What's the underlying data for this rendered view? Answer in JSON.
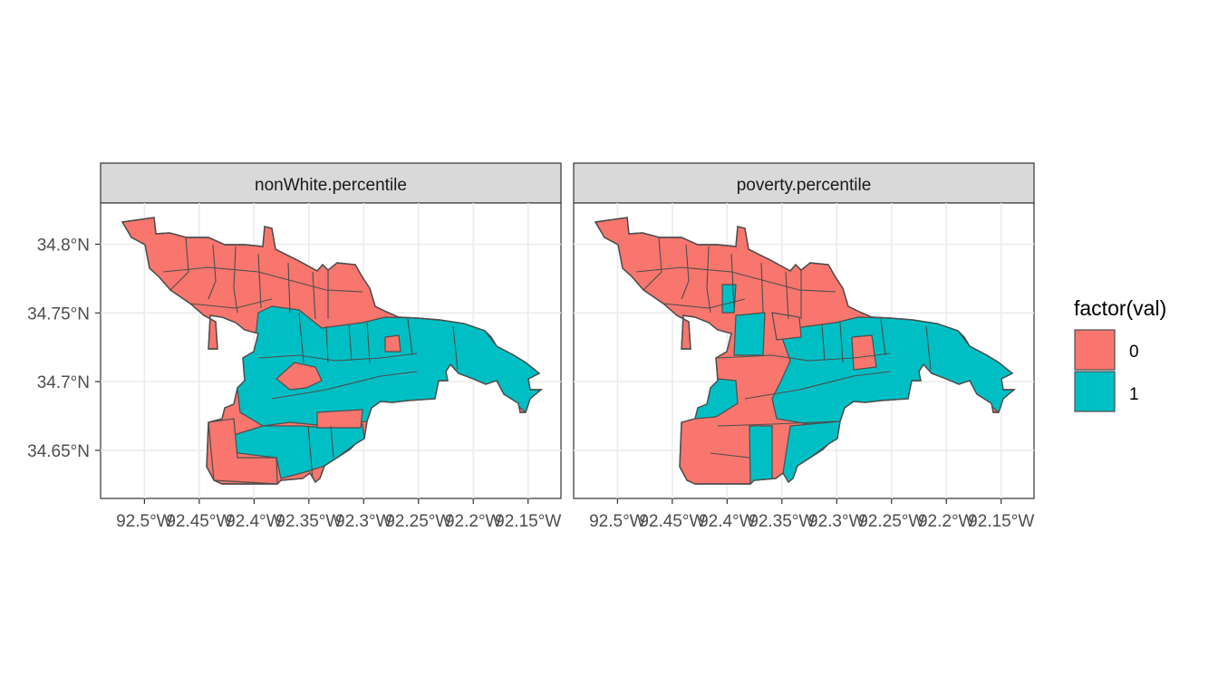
{
  "chart_data": {
    "type": "choropleth-map",
    "facets": [
      {
        "name": "nonWhite.percentile"
      },
      {
        "name": "poverty.percentile"
      }
    ],
    "x_ticks": [
      "92.5°W",
      "92.45°W",
      "92.4°W",
      "92.35°W",
      "92.3°W",
      "92.25°W",
      "92.2°W",
      "92.15°W"
    ],
    "x_values": [
      -92.5,
      -92.45,
      -92.4,
      -92.35,
      -92.3,
      -92.25,
      -92.2,
      -92.15
    ],
    "y_ticks": [
      "34.8°N",
      "34.75°N",
      "34.7°N",
      "34.65°N"
    ],
    "y_values": [
      34.8,
      34.75,
      34.7,
      34.65
    ],
    "xlim": [
      -92.54,
      -92.12
    ],
    "ylim": [
      34.615,
      34.83
    ],
    "legend": {
      "title": "factor(val)",
      "placement": "right",
      "entries": [
        {
          "label": "0",
          "color": "#F8766D"
        },
        {
          "label": "1",
          "color": "#00BFC4"
        }
      ]
    },
    "grid": true
  },
  "colors": {
    "zero": "#F8766D",
    "one": "#00BFC4",
    "strip": "#d9d9d9",
    "border": "#333333",
    "district_border": "#4d4d4d",
    "grid": "#ebebeb"
  }
}
